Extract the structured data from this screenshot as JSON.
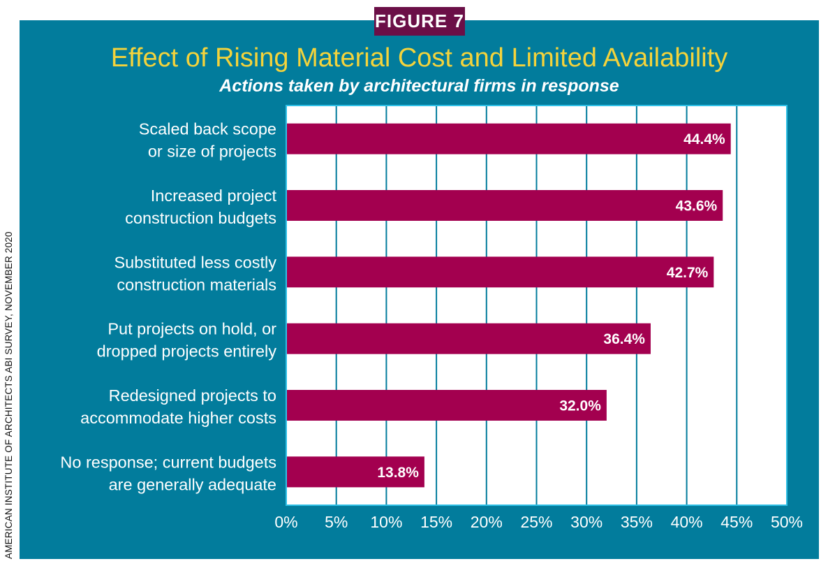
{
  "figure_tag": "FIGURE 7",
  "source": "AMERICAN INSTITUTE OF ARCHITECTS ABI SURVEY, NOVEMBER 2020",
  "colors": {
    "background": "#027c9c",
    "bar": "#a3004f",
    "title": "#f4d33b",
    "tag": "#6b0f47",
    "gridline": "#027c9c",
    "plot_border": "#2fc0e6"
  },
  "chart_data": {
    "type": "bar",
    "orientation": "horizontal",
    "title": "Effect of Rising Material Cost and Limited Availability",
    "subtitle": "Actions taken by architectural firms in response",
    "categories": [
      [
        "Scaled back scope",
        "or size of projects"
      ],
      [
        "Increased project",
        "construction budgets"
      ],
      [
        "Substituted less costly",
        "construction materials"
      ],
      [
        "Put projects on hold, or",
        "dropped projects entirely"
      ],
      [
        "Redesigned projects to",
        "accommodate higher costs"
      ],
      [
        "No response; current budgets",
        "are generally adequate"
      ]
    ],
    "values": [
      44.4,
      43.6,
      42.7,
      36.4,
      32.0,
      13.8
    ],
    "value_labels": [
      "44.4%",
      "43.6%",
      "42.7%",
      "36.4%",
      "32.0%",
      "13.8%"
    ],
    "xlim": [
      0,
      50
    ],
    "xticks": [
      0,
      5,
      10,
      15,
      20,
      25,
      30,
      35,
      40,
      45,
      50
    ],
    "xtick_labels": [
      "0%",
      "5%",
      "10%",
      "15%",
      "20%",
      "25%",
      "30%",
      "35%",
      "40%",
      "45%",
      "50%"
    ],
    "xlabel": "",
    "ylabel": "",
    "grid": true,
    "legend": "none"
  }
}
